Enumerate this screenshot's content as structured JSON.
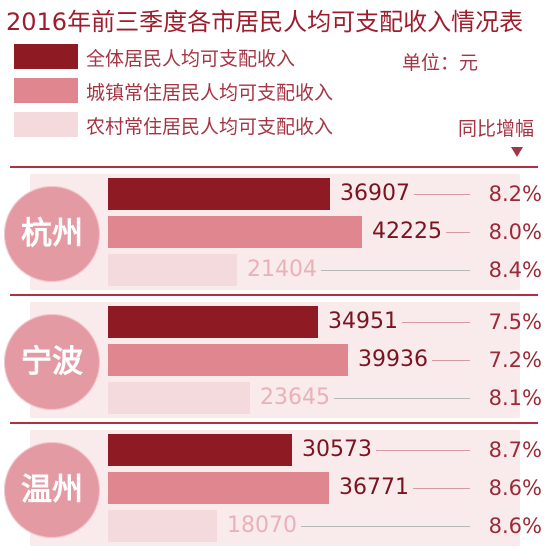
{
  "title": "2016年前三季度各市居民人均可支配收入情况表",
  "unit_label": "单位：元",
  "yoy_header": "同比增幅",
  "colors": {
    "all": "#8e1a24",
    "urban": "#e0868f",
    "rural": "#f4d9dd",
    "circle": "#e39aa3",
    "accent": "#9e1d2d"
  },
  "legend": [
    {
      "label": "全体居民人均可支配收入",
      "key": "all"
    },
    {
      "label": "城镇常住居民人均可支配收入",
      "key": "urban"
    },
    {
      "label": "农村常住居民人均可支配收入",
      "key": "rural"
    }
  ],
  "chart_data": {
    "type": "bar",
    "orientation": "horizontal",
    "title": "2016年前三季度各市居民人均可支配收入情况表",
    "unit": "元",
    "categories": [
      "杭州",
      "宁波",
      "温州"
    ],
    "series": [
      {
        "name": "全体居民人均可支配收入",
        "values": [
          36907,
          34951,
          30573
        ],
        "yoy": [
          "8.2%",
          "7.5%",
          "8.7%"
        ]
      },
      {
        "name": "城镇常住居民人均可支配收入",
        "values": [
          42225,
          39936,
          36771
        ],
        "yoy": [
          "8.0%",
          "7.2%",
          "8.6%"
        ]
      },
      {
        "name": "农村常住居民人均可支配收入",
        "values": [
          21404,
          23645,
          18070
        ],
        "yoy": [
          "8.4%",
          "8.1%",
          "8.6%"
        ]
      }
    ],
    "value_labels": [
      [
        "36907",
        "42225",
        "21404"
      ],
      [
        "34951",
        "39936",
        "23645"
      ],
      [
        "30573",
        "36771",
        "18070"
      ]
    ],
    "legend_position": "top-left"
  }
}
